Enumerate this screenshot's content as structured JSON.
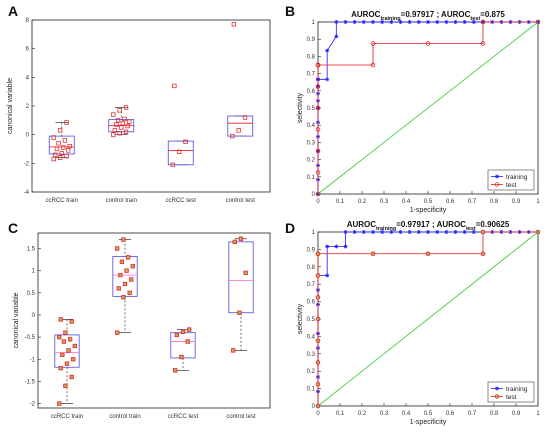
{
  "panel_labels": [
    "A",
    "B",
    "C",
    "D"
  ],
  "chart_data": [
    {
      "panel": "A",
      "type": "box",
      "ylabel": "canonical variable",
      "ylim": [
        -4,
        8
      ],
      "yticks": [
        -4,
        -2,
        0,
        2,
        4,
        6,
        8
      ],
      "categories": [
        "ccRCC train",
        "control train",
        "ccRCC test",
        "control test"
      ],
      "marker_color": "#e31a1c",
      "box_color": "#4a4ae0",
      "median_color": "#e31a1c",
      "boxes": [
        {
          "q1": -1.35,
          "median": -0.85,
          "q3": -0.1,
          "whisker_low": -1.6,
          "whisker_high": 0.85
        },
        {
          "q1": 0.2,
          "median": 0.65,
          "q3": 1.05,
          "whisker_low": 0.0,
          "whisker_high": 1.9
        },
        {
          "q1": -2.1,
          "median": -1.1,
          "q3": -0.45,
          "whisker_low": -2.1,
          "whisker_high": -0.45
        },
        {
          "q1": -0.1,
          "median": 0.8,
          "q3": 1.3,
          "whisker_low": -0.1,
          "whisker_high": 1.3
        }
      ],
      "points": [
        [
          -1.7,
          -1.6,
          -1.5,
          -1.4,
          -1.3,
          -1.1,
          -1.0,
          -0.9,
          -0.8,
          -0.6,
          -0.4,
          -0.2,
          0.3,
          0.85
        ],
        [
          0.0,
          0.1,
          0.2,
          0.3,
          0.5,
          0.6,
          0.7,
          0.8,
          0.9,
          1.0,
          1.1,
          1.4,
          1.7,
          1.9
        ],
        [
          -2.1,
          -1.2,
          -0.5,
          3.4
        ],
        [
          -0.1,
          0.3,
          1.2,
          7.7
        ]
      ]
    },
    {
      "panel": "B",
      "type": "line",
      "title": "AUROC training =0.97917 ; AUROC test =0.875",
      "title_parts": [
        "AUROC",
        "training",
        "=0.97917 ; AUROC",
        "test",
        "=0.875"
      ],
      "xlabel": "1-specificity",
      "ylabel": "selectivity",
      "xlim": [
        0,
        1
      ],
      "ylim": [
        0,
        1
      ],
      "xticks": [
        0,
        0.1,
        0.2,
        0.3,
        0.4,
        0.5,
        0.6,
        0.7,
        0.8,
        0.9,
        1
      ],
      "yticks": [
        0,
        0.1,
        0.2,
        0.3,
        0.4,
        0.5,
        0.6,
        0.7,
        0.8,
        0.9,
        1
      ],
      "legend": [
        "training",
        "test"
      ],
      "legend_position": "bottom-right",
      "diagonal_color": "#33cc33",
      "series": [
        {
          "name": "training",
          "color": "#1a1aff",
          "marker": "*",
          "x": [
            0,
            0,
            0,
            0,
            0,
            0,
            0,
            0,
            0,
            0,
            0,
            0,
            0,
            0,
            0.0417,
            0.0417,
            0.0833,
            0.0833,
            0.125,
            0.1667,
            0.2083,
            0.25,
            0.2917,
            0.3333,
            0.375,
            0.4167,
            0.4583,
            0.5,
            0.5417,
            0.5833,
            0.625,
            0.6667,
            0.7083,
            0.75,
            0.7917,
            0.8333,
            0.875,
            0.9167,
            0.9583,
            1
          ],
          "y": [
            0,
            0.0833,
            0.1667,
            0.25,
            0.3333,
            0.4167,
            0.5,
            0.5417,
            0.5833,
            0.625,
            0.6667,
            0.6667,
            0.6667,
            0.6667,
            0.6667,
            0.8333,
            0.9167,
            1,
            1,
            1,
            1,
            1,
            1,
            1,
            1,
            1,
            1,
            1,
            1,
            1,
            1,
            1,
            1,
            1,
            1,
            1,
            1,
            1,
            1,
            1
          ]
        },
        {
          "name": "test",
          "color": "#e31a1c",
          "marker": "o",
          "x": [
            0,
            0,
            0,
            0,
            0,
            0,
            0,
            0,
            0,
            0.25,
            0.25,
            0.5,
            0.75,
            0.75,
            1
          ],
          "y": [
            0,
            0.125,
            0.25,
            0.375,
            0.5,
            0.625,
            0.75,
            0.75,
            0.75,
            0.75,
            0.875,
            0.875,
            0.875,
            1,
            1
          ]
        },
        {
          "name": "",
          "color": "#33cc33",
          "marker": "",
          "x": [
            0,
            1
          ],
          "y": [
            0,
            1
          ]
        }
      ]
    },
    {
      "panel": "C",
      "type": "box",
      "ylabel": "canonical variable",
      "ylim": [
        -2.1,
        1.85
      ],
      "yticks": [
        -2,
        -1.5,
        -1,
        -0.5,
        0,
        0.5,
        1,
        1.5
      ],
      "categories": [
        "ccRCC train",
        "control train",
        "ccRCC test",
        "control test"
      ],
      "marker_color": "#e31a1c",
      "marker_fill": "#c8a060",
      "box_color": "#4a4ae0",
      "median_color": "#ff66cc",
      "boxes": [
        {
          "q1": -1.18,
          "median": -0.85,
          "q3": -0.45,
          "whisker_low": -2.0,
          "whisker_high": -0.1
        },
        {
          "q1": 0.42,
          "median": 0.9,
          "q3": 1.32,
          "whisker_low": -0.4,
          "whisker_high": 1.7
        },
        {
          "q1": -0.97,
          "median": -0.6,
          "q3": -0.4,
          "whisker_low": -1.25,
          "whisker_high": -0.33
        },
        {
          "q1": 0.05,
          "median": 0.78,
          "q3": 1.65,
          "whisker_low": -0.8,
          "whisker_high": 1.72
        }
      ],
      "points": [
        [
          -2.0,
          -1.6,
          -1.4,
          -1.2,
          -1.1,
          -1.0,
          -0.9,
          -0.8,
          -0.7,
          -0.6,
          -0.55,
          -0.5,
          -0.4,
          -0.15,
          -0.1
        ],
        [
          -0.4,
          0.4,
          0.5,
          0.6,
          0.7,
          0.8,
          0.9,
          1.0,
          1.1,
          1.2,
          1.3,
          1.5,
          1.7
        ],
        [
          -1.25,
          -0.95,
          -0.6,
          -0.45,
          -0.38,
          -0.33
        ],
        [
          -0.8,
          0.05,
          0.95,
          1.65,
          1.72
        ]
      ]
    },
    {
      "panel": "D",
      "type": "line",
      "title": "AUROC training =0.97917 ; AUROC test =0.90625",
      "title_parts": [
        "AUROC",
        "training",
        "=0.97917 ; AUROC",
        "test",
        "=0.90625"
      ],
      "xlabel": "1-specificity",
      "ylabel": "selectivity",
      "xlim": [
        0,
        1
      ],
      "ylim": [
        0,
        1
      ],
      "xticks": [
        0,
        0.1,
        0.2,
        0.3,
        0.4,
        0.5,
        0.6,
        0.7,
        0.8,
        0.9,
        1
      ],
      "yticks": [
        0,
        0.1,
        0.2,
        0.3,
        0.4,
        0.5,
        0.6,
        0.7,
        0.8,
        0.9,
        1
      ],
      "legend": [
        "training",
        "test"
      ],
      "legend_position": "bottom-right",
      "diagonal_color": "#33cc33",
      "series": [
        {
          "name": "training",
          "color": "#1a1aff",
          "marker": "*",
          "x": [
            0,
            0,
            0,
            0,
            0,
            0,
            0,
            0,
            0,
            0,
            0,
            0,
            0.0417,
            0.0417,
            0.0833,
            0.125,
            0.125,
            0.1667,
            0.2083,
            0.25,
            0.2917,
            0.3333,
            0.375,
            0.4167,
            0.4583,
            0.5,
            0.5417,
            0.5833,
            0.625,
            0.6667,
            0.7083,
            0.75,
            0.7917,
            0.8333,
            0.875,
            0.9167,
            0.9583,
            1
          ],
          "y": [
            0,
            0.0833,
            0.1667,
            0.25,
            0.3333,
            0.4167,
            0.5,
            0.5833,
            0.6667,
            0.75,
            0.75,
            0.75,
            0.75,
            0.9167,
            0.9167,
            0.9167,
            1,
            1,
            1,
            1,
            1,
            1,
            1,
            1,
            1,
            1,
            1,
            1,
            1,
            1,
            1,
            1,
            1,
            1,
            1,
            1,
            1,
            1
          ]
        },
        {
          "name": "test",
          "color": "#e31a1c",
          "marker": "o",
          "marker_fill": "#c8a060",
          "x": [
            0,
            0,
            0,
            0,
            0,
            0,
            0,
            0,
            0,
            0.25,
            0.5,
            0.75,
            0.75,
            1
          ],
          "y": [
            0,
            0.125,
            0.25,
            0.375,
            0.5,
            0.625,
            0.75,
            0.875,
            0.875,
            0.875,
            0.875,
            0.875,
            1,
            1
          ]
        },
        {
          "name": "",
          "color": "#33cc33",
          "marker": "",
          "x": [
            0,
            1
          ],
          "y": [
            0,
            1
          ]
        }
      ]
    }
  ]
}
